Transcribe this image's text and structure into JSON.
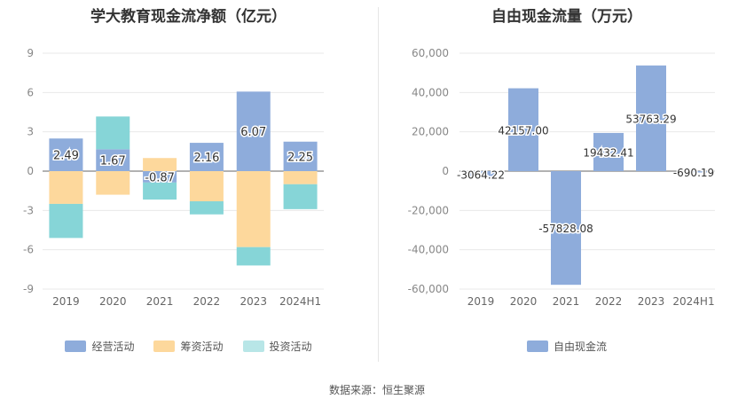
{
  "left": {
    "title": "学大教育现金流净额（亿元）",
    "legend": [
      {
        "label": "经营活动",
        "color": "#8eacdb"
      },
      {
        "label": "筹资活动",
        "color": "#fdd89c"
      },
      {
        "label": "投资活动",
        "color": "#86d5d7"
      }
    ]
  },
  "right": {
    "title": "自由现金流量（万元）",
    "legend": [
      {
        "label": "自由现金流",
        "color": "#8eacdb"
      }
    ]
  },
  "source": "数据来源：恒生聚源",
  "chart_data": [
    {
      "type": "bar",
      "stacked": true,
      "title": "学大教育现金流净额（亿元）",
      "categories": [
        "2019",
        "2020",
        "2021",
        "2022",
        "2023",
        "2024H1"
      ],
      "ylim": [
        -9,
        9
      ],
      "yticks": [
        9,
        6,
        3,
        0,
        -3,
        -6,
        -9
      ],
      "grid": true,
      "legend_position": "bottom",
      "series": [
        {
          "name": "经营活动",
          "color": "#8eacdb",
          "values": [
            2.49,
            1.67,
            -0.87,
            2.16,
            6.07,
            2.25
          ],
          "labels": [
            "2.49",
            "1.67",
            "-0.87",
            "2.16",
            "6.07",
            "2.25"
          ]
        },
        {
          "name": "筹资活动",
          "color": "#fdd89c",
          "values": [
            -2.5,
            -1.8,
            1.0,
            -2.3,
            -5.8,
            -1.0
          ]
        },
        {
          "name": "投资活动",
          "color": "#86d5d7",
          "values": [
            -2.6,
            2.5,
            -1.3,
            -1.0,
            -1.4,
            -1.9
          ]
        }
      ]
    },
    {
      "type": "bar",
      "title": "自由现金流量（万元）",
      "categories": [
        "2019",
        "2020",
        "2021",
        "2022",
        "2023",
        "2024H1"
      ],
      "ylim": [
        -60000,
        60000
      ],
      "yticks": [
        60000,
        40000,
        20000,
        0,
        -20000,
        -40000,
        -60000
      ],
      "ytick_labels": [
        "60,000",
        "40,000",
        "20,000",
        "0",
        "-20,000",
        "-40,000",
        "-60,000"
      ],
      "grid": true,
      "legend_position": "bottom",
      "series": [
        {
          "name": "自由现金流",
          "color": "#8eacdb",
          "values": [
            -3064.22,
            42157.0,
            -57828.08,
            19432.41,
            53763.29,
            -690.19
          ],
          "labels": [
            "-3064.22",
            "42157.00",
            "-57828.08",
            "19432.41",
            "53763.29",
            "-690.19"
          ]
        }
      ]
    }
  ]
}
